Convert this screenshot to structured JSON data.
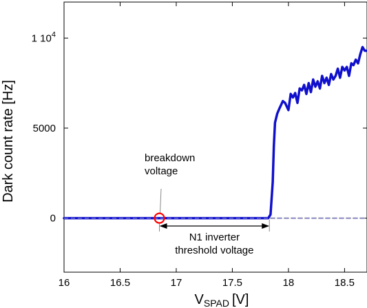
{
  "chart_data": {
    "type": "line",
    "xlabel_main": "V",
    "xlabel_sub": "SPAD",
    "xlabel_unit": "[V]",
    "ylabel": "Dark count rate [Hz]",
    "xlim": [
      16,
      18.7
    ],
    "ylim": [
      -3000,
      12000
    ],
    "x_ticks": [
      16,
      16.5,
      17,
      17.5,
      18,
      18.5
    ],
    "x_tick_labels": [
      "16",
      "16.5",
      "17",
      "17.5",
      "18",
      "18.5"
    ],
    "y_ticks": [
      0,
      5000,
      10000
    ],
    "y_tick_labels": [
      {
        "main": "0",
        "sup": ""
      },
      {
        "main": "5000",
        "sup": ""
      },
      {
        "main": "1 10",
        "sup": "4"
      }
    ],
    "grid": false,
    "series": [
      {
        "color": "#1010cc",
        "style": "solid",
        "x": [
          16.0,
          16.5,
          17.0,
          17.5,
          17.82,
          17.84,
          17.86,
          17.87,
          17.88,
          17.9,
          17.92,
          17.95,
          17.97,
          18.0,
          18.02,
          18.04,
          18.06,
          18.08,
          18.1,
          18.12,
          18.14,
          18.16,
          18.18,
          18.2,
          18.22,
          18.24,
          18.26,
          18.28,
          18.3,
          18.32,
          18.34,
          18.36,
          18.38,
          18.4,
          18.42,
          18.44,
          18.46,
          18.48,
          18.5,
          18.52,
          18.54,
          18.56,
          18.58,
          18.6,
          18.62,
          18.64,
          18.66,
          18.68,
          18.7
        ],
        "y": [
          0,
          0,
          0,
          0,
          0,
          200,
          2000,
          4000,
          5300,
          5800,
          6100,
          6500,
          6400,
          6000,
          6900,
          6700,
          6950,
          6400,
          7200,
          7100,
          7400,
          6900,
          7500,
          7000,
          7700,
          7300,
          7600,
          7200,
          7900,
          7500,
          7800,
          7400,
          8000,
          7700,
          7900,
          8300,
          7800,
          8400,
          8200,
          8400,
          7900,
          8600,
          8500,
          8800,
          8600,
          9100,
          9500,
          9300,
          9300
        ]
      },
      {
        "color": "#999999",
        "style": "dashed",
        "x": [
          16.0,
          18.7
        ],
        "y": [
          0,
          0
        ]
      }
    ],
    "annotations": {
      "breakdown": {
        "line1": "breakdown",
        "line2": "voltage",
        "point_x": 16.85,
        "point_y": 0,
        "marker_color": "#ff0000"
      },
      "threshold": {
        "line1": "N1 inverter",
        "line2": "threshold voltage",
        "from_x": 16.85,
        "to_x": 17.83
      }
    }
  }
}
